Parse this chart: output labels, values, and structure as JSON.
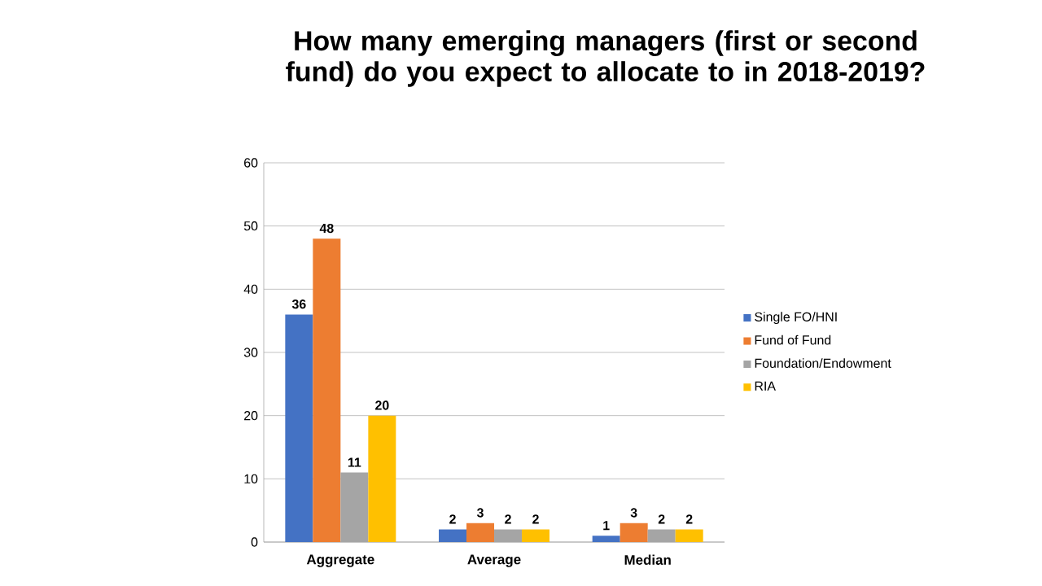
{
  "chart_data": {
    "type": "bar",
    "title": "How many emerging managers (first or second fund) do you expect to allocate to in 2018-2019?",
    "categories": [
      "Aggregate",
      "Average",
      "Median"
    ],
    "series": [
      {
        "name": "Single FO/HNI",
        "color": "#4472c4",
        "values": [
          36,
          2,
          1
        ]
      },
      {
        "name": "Fund of Fund",
        "color": "#ed7d31",
        "values": [
          48,
          3,
          3
        ]
      },
      {
        "name": "Foundation/Endowment",
        "color": "#a5a5a5",
        "values": [
          11,
          2,
          2
        ]
      },
      {
        "name": "RIA",
        "color": "#ffc000",
        "values": [
          20,
          2,
          2
        ]
      }
    ],
    "ylim": [
      0,
      60
    ],
    "yticks": [
      0,
      10,
      20,
      30,
      40,
      50,
      60
    ],
    "grid": "y",
    "legend": "right",
    "data_labels": true
  }
}
